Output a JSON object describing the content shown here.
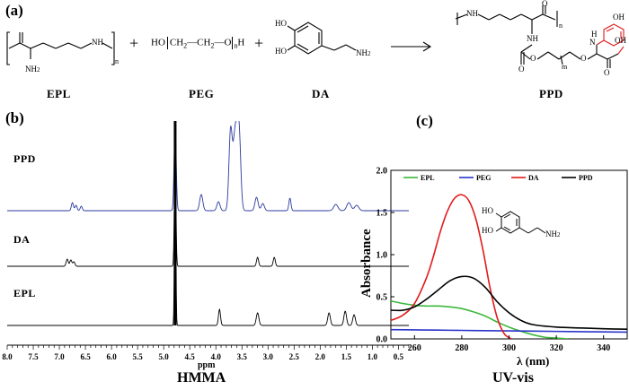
{
  "panels": {
    "a": "(a)",
    "b": "(b)",
    "c": "(c)"
  },
  "scheme": {
    "reactants": [
      "EPL",
      "PEG",
      "DA"
    ],
    "product": "PPD",
    "plus": "+",
    "peg_formula": {
      "prefix": "HO",
      "unit": "CH",
      "sub2": "2",
      "dash": "—",
      "o": "O",
      "n": "n",
      "h": "H"
    },
    "atoms": {
      "nh": "NH",
      "n": "N",
      "h": "H",
      "ho": "HO",
      "oh": "OH",
      "nh2": "NH",
      "sub2": "2",
      "o": "O",
      "n_sub": "n",
      "m_sub": "m"
    }
  },
  "nmr": {
    "spectra": [
      "PPD",
      "DA",
      "EPL"
    ],
    "ticks": [
      "8.0",
      "7.5",
      "7.0",
      "6.5",
      "6.0",
      "5.5",
      "5.0",
      "4.5",
      "4.0",
      "3.5",
      "3.0",
      "2.5",
      "2.0",
      "1.5",
      "1.0",
      "0.5"
    ],
    "xlabel": "ppm",
    "caption": "HMMA"
  },
  "chart_data": {
    "type": "line",
    "xlabel": "λ (nm)",
    "ylabel": "Absorbance",
    "xlim": [
      250,
      350
    ],
    "ylim": [
      0,
      2.0
    ],
    "xticks": [
      260,
      280,
      300,
      320,
      340
    ],
    "yticks": [
      "0.0",
      "0.5",
      "1.0",
      "1.5",
      "2.0"
    ],
    "legend_position": "top",
    "caption": "UV-vis",
    "inset_labels": {
      "ho": "HO",
      "nh2": "NH",
      "sub2": "2"
    },
    "series": [
      {
        "name": "EPL",
        "color": "#3cb83c",
        "x": [
          250,
          255,
          260,
          265,
          270,
          275,
          280,
          285,
          290,
          295,
          300,
          305,
          310,
          315,
          320,
          325
        ],
        "y": [
          0.45,
          0.42,
          0.4,
          0.39,
          0.39,
          0.38,
          0.36,
          0.32,
          0.27,
          0.2,
          0.14,
          0.09,
          0.05,
          0.02,
          0.01,
          0.0
        ]
      },
      {
        "name": "PEG",
        "color": "#2b35c9",
        "x": [
          250,
          260,
          270,
          280,
          290,
          300,
          310,
          320,
          330,
          340,
          350
        ],
        "y": [
          0.11,
          0.107,
          0.104,
          0.101,
          0.098,
          0.095,
          0.092,
          0.089,
          0.086,
          0.083,
          0.08
        ]
      },
      {
        "name": "DA",
        "color": "#e11b1b",
        "x": [
          250,
          255,
          260,
          265,
          268,
          271,
          274,
          277,
          280,
          283,
          286,
          289,
          292,
          295,
          298,
          301
        ],
        "y": [
          0.22,
          0.28,
          0.42,
          0.72,
          0.98,
          1.28,
          1.52,
          1.67,
          1.71,
          1.64,
          1.42,
          1.05,
          0.6,
          0.25,
          0.06,
          0.0
        ]
      },
      {
        "name": "PPD",
        "color": "#000000",
        "x": [
          250,
          255,
          260,
          265,
          270,
          275,
          280,
          285,
          290,
          295,
          300,
          305,
          310,
          320,
          330,
          340,
          350
        ],
        "y": [
          0.34,
          0.34,
          0.38,
          0.47,
          0.58,
          0.69,
          0.74,
          0.72,
          0.61,
          0.44,
          0.31,
          0.22,
          0.17,
          0.14,
          0.13,
          0.12,
          0.115
        ]
      }
    ]
  }
}
